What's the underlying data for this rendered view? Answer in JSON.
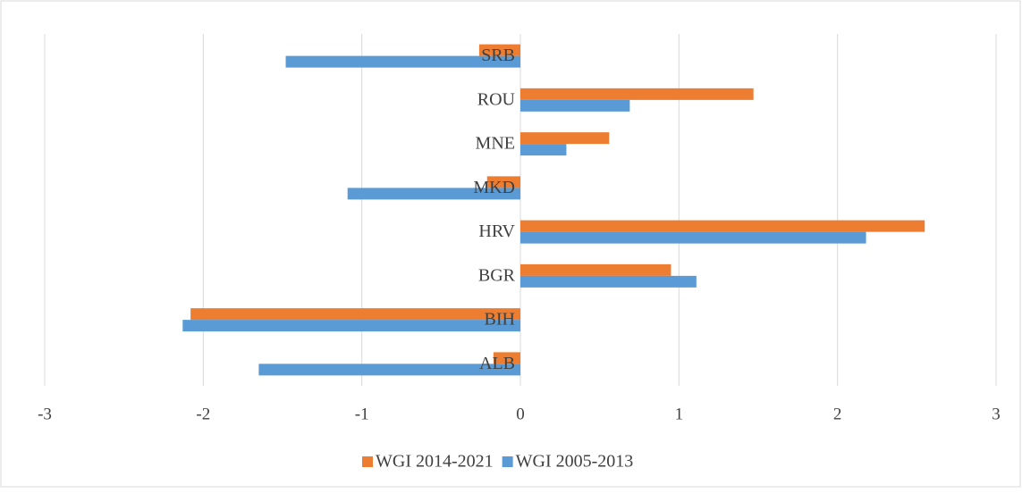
{
  "chart_data": {
    "type": "barh",
    "categories": [
      "ALB",
      "BIH",
      "BGR",
      "HRV",
      "MKD",
      "MNE",
      "ROU",
      "SRB"
    ],
    "series": [
      {
        "name": "WGI 2014-2021",
        "color": "#ed7d31",
        "values": [
          -0.17,
          -2.08,
          0.95,
          2.55,
          -0.21,
          0.56,
          1.47,
          -0.26
        ]
      },
      {
        "name": "WGI 2005-2013",
        "color": "#5b9bd5",
        "values": [
          -1.65,
          -2.13,
          1.11,
          2.18,
          -1.09,
          0.29,
          0.69,
          -1.48
        ]
      }
    ],
    "xlim": [
      -3,
      3
    ],
    "xticks": [
      -3,
      -2,
      -1,
      0,
      1,
      2,
      3
    ],
    "grid": true,
    "legend": "bottom"
  }
}
